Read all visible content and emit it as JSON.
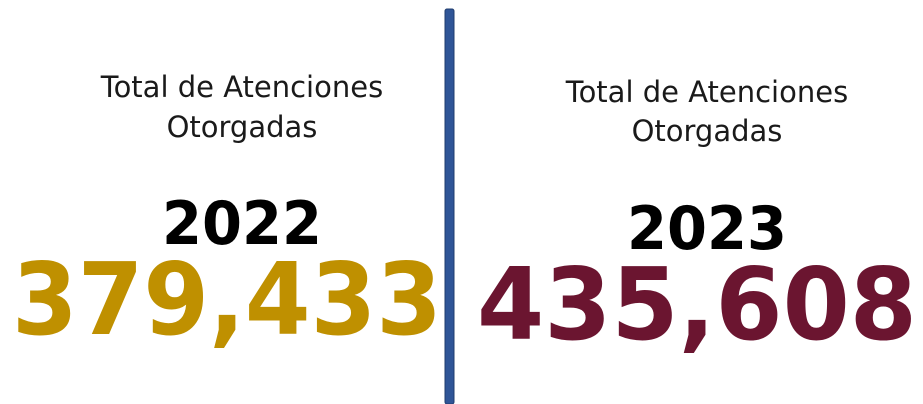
{
  "panels": [
    {
      "label_lines": [
        "Total de Atenciones",
        "Otorgadas"
      ],
      "year": "2022",
      "total": "379,433",
      "color": "#bf9000"
    },
    {
      "label_lines": [
        "Total de Atenciones",
        "Otorgadas"
      ],
      "year": "2023",
      "total": "435,608",
      "color": "#6b1530"
    }
  ]
}
